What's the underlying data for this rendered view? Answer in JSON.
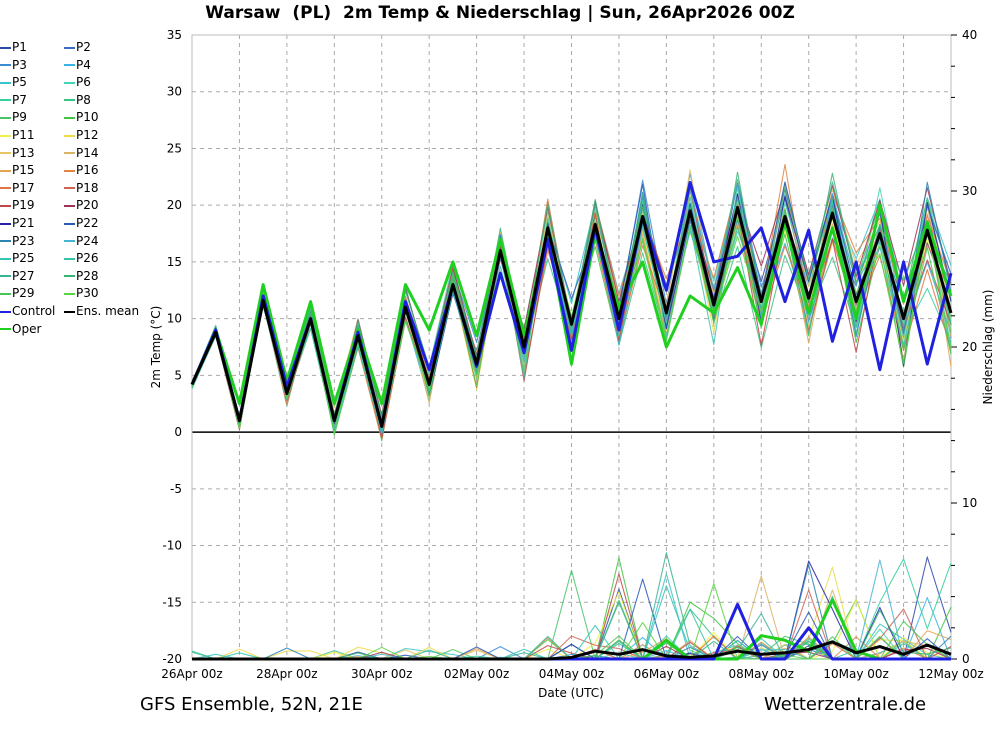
{
  "title": "Warsaw  (PL)  2m Temp & Niederschlag | Sun, 26Apr2026 00Z",
  "footer": {
    "left": "GFS Ensemble, 52N, 21E",
    "right": "Wetterzentrale.de"
  },
  "chart_data": {
    "type": "line",
    "title": "Warsaw  (PL)  2m Temp & Niederschlag | Sun, 26Apr2026 00Z",
    "xlabel": "Date (UTC)",
    "ylabel": "2m Temp (°C)",
    "y2label": "Niederschlag (mm)",
    "ylim": [
      -20,
      35
    ],
    "y2lim": [
      0,
      40
    ],
    "yticks": [
      35,
      30,
      25,
      20,
      15,
      10,
      5,
      0,
      -5,
      -10,
      -15,
      -20
    ],
    "y2ticks": [
      40,
      30,
      20,
      10,
      0
    ],
    "xtick_labels": [
      "26Apr 00z",
      "28Apr 00z",
      "30Apr 00z",
      "02May 00z",
      "04May 00z",
      "06May 00z",
      "08May 00z",
      "10May 00z",
      "12May 00z"
    ],
    "x_step_hours": 12,
    "x_days": 16,
    "grid": true,
    "legend_position": "left-outside",
    "legend": [
      "P1",
      "P2",
      "P3",
      "P4",
      "P5",
      "P6",
      "P7",
      "P8",
      "P9",
      "P10",
      "P11",
      "P12",
      "P13",
      "P14",
      "P15",
      "P16",
      "P17",
      "P18",
      "P19",
      "P20",
      "P21",
      "P22",
      "P23",
      "P24",
      "P25",
      "P26",
      "P27",
      "P28",
      "P29",
      "P30",
      "Control",
      "Ens. mean",
      "Oper"
    ],
    "member_colors": [
      "#2a4aa8",
      "#3a6cc8",
      "#3a8ad4",
      "#3ab4e4",
      "#38c4c8",
      "#46d4b4",
      "#38d0a0",
      "#38c484",
      "#48c468",
      "#44c444",
      "#f0f048",
      "#ecdc48",
      "#e8c468",
      "#d8b468",
      "#e4a454",
      "#e08444",
      "#e07444",
      "#d06454",
      "#c04848",
      "#a03454",
      "#2424a4",
      "#2a58b8",
      "#2a84b4",
      "#48b4d4",
      "#38c4b4",
      "#38c4a4",
      "#38b494",
      "#38b474",
      "#48c454",
      "#58d444"
    ],
    "series": [
      {
        "name": "Ens. mean",
        "color": "#000000",
        "temp": [
          4.2,
          8.8,
          1.0,
          11.6,
          3.4,
          10.0,
          1.0,
          8.5,
          0.5,
          11.0,
          4.2,
          13.0,
          6.0,
          16.0,
          7.5,
          18.0,
          9.5,
          18.3,
          10.0,
          19.0,
          10.5,
          19.5,
          11.2,
          19.8,
          11.5,
          19.0,
          11.8,
          19.3,
          11.5,
          17.5,
          10.0,
          17.8,
          10.5
        ],
        "precip": [
          0,
          0,
          0,
          0,
          0,
          0,
          0,
          0,
          0,
          0,
          0,
          0,
          0,
          0,
          0,
          0,
          0.1,
          0.5,
          0.3,
          0.6,
          0.2,
          0.1,
          0.2,
          0.5,
          0.3,
          0.4,
          0.6,
          1.1,
          0.4,
          0.8,
          0.3,
          0.9,
          0.3
        ]
      },
      {
        "name": "Control",
        "color": "#2020e0",
        "temp": [
          4.2,
          9.0,
          1.0,
          12.0,
          4.0,
          10.0,
          1.0,
          8.8,
          0.5,
          11.5,
          5.5,
          13.0,
          5.8,
          14.0,
          7.0,
          17.0,
          7.2,
          18.0,
          9.0,
          19.0,
          12.5,
          22.0,
          15.0,
          15.5,
          18.0,
          11.5,
          17.8,
          8.0,
          15.0,
          5.5,
          15.0,
          6.0,
          14.0
        ],
        "precip": [
          0,
          0,
          0,
          0,
          0,
          0,
          0,
          0,
          0,
          0,
          0,
          0,
          0,
          0,
          0,
          0,
          0,
          0,
          0,
          0,
          0,
          0,
          0,
          3.5,
          0,
          0,
          2.0,
          0,
          0,
          0,
          0,
          0,
          0
        ]
      },
      {
        "name": "Oper",
        "color": "#20d020",
        "temp": [
          4.2,
          9.0,
          2.5,
          13.0,
          4.5,
          11.5,
          2.5,
          9.0,
          2.5,
          13.0,
          9.0,
          15.0,
          8.5,
          17.0,
          8.5,
          17.5,
          6.0,
          17.5,
          11.0,
          15.0,
          7.5,
          12.0,
          10.5,
          14.5,
          9.5,
          18.5,
          10.5,
          18.0,
          10.0,
          20.0,
          11.5,
          18.5,
          12.0
        ],
        "precip": [
          0,
          0,
          0,
          0,
          0,
          0,
          0,
          0,
          0,
          0,
          0,
          0,
          0,
          0,
          0,
          0,
          0,
          0,
          0,
          0,
          1.2,
          0,
          0,
          0,
          1.5,
          1.2,
          0.5,
          3.8,
          0.5,
          0,
          0,
          0,
          0
        ]
      }
    ],
    "member_spread_note": "30 ensemble members P1-P30 drawn as thin lines around the mean"
  }
}
